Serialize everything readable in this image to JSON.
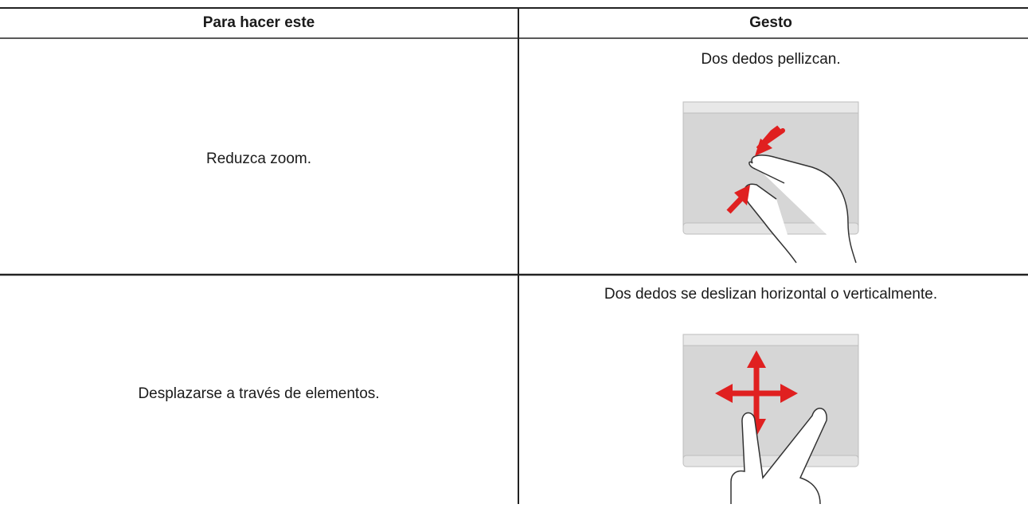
{
  "table": {
    "header": [
      "Para hacer este",
      "Gesto"
    ],
    "rows": [
      [
        "Reduzca zoom.",
        "Dos dedos pellizcan."
      ],
      [
        "Desplazarse a través de elementos.",
        "Dos dedos se deslizan horizontal o verticalmente."
      ]
    ]
  }
}
